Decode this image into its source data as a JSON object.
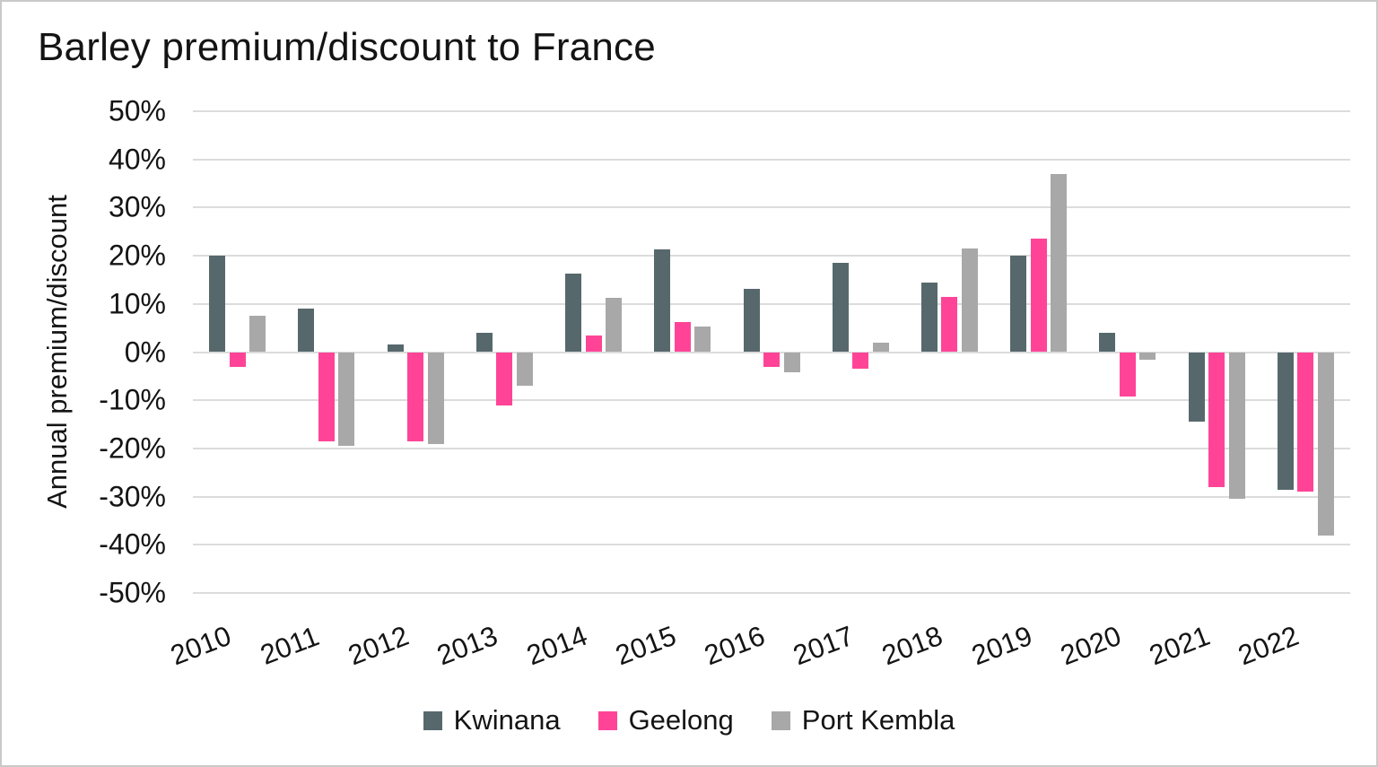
{
  "figure": {
    "background": "#ffffff",
    "border_color": "#c9c9c9",
    "text_color": "#141414"
  },
  "chart_data": {
    "type": "bar",
    "title": "Barley premium/discount to France",
    "xlabel": "",
    "ylabel": "Annual premium/discount",
    "ylim": [
      -50,
      50
    ],
    "ytick_step": 10,
    "ytick_labels": [
      "50%",
      "40%",
      "30%",
      "20%",
      "10%",
      "0%",
      "-10%",
      "-20%",
      "-30%",
      "-40%",
      "-50%"
    ],
    "grid": true,
    "gridline_color": "#dcdcdc",
    "legend_position": "bottom",
    "categories": [
      "2010",
      "2011",
      "2012",
      "2013",
      "2014",
      "2015",
      "2016",
      "2017",
      "2018",
      "2019",
      "2020",
      "2021",
      "2022"
    ],
    "series": [
      {
        "name": "Kwinana",
        "color": "#57686d",
        "values": [
          20.0,
          9.0,
          1.5,
          4.0,
          16.3,
          21.3,
          13.2,
          18.5,
          14.5,
          20.0,
          4.0,
          -14.5,
          -28.5
        ]
      },
      {
        "name": "Geelong",
        "color": "#ff4497",
        "values": [
          -3.0,
          -18.5,
          -18.5,
          -11.0,
          3.5,
          6.3,
          -3.0,
          -3.5,
          11.5,
          23.5,
          -9.2,
          -28.0,
          -29.0
        ]
      },
      {
        "name": "Port Kembla",
        "color": "#a8a8a8",
        "values": [
          7.5,
          -19.5,
          -19.0,
          -7.0,
          11.3,
          5.3,
          -4.2,
          2.0,
          21.5,
          37.0,
          -1.5,
          -30.5,
          -38.0
        ]
      }
    ]
  }
}
